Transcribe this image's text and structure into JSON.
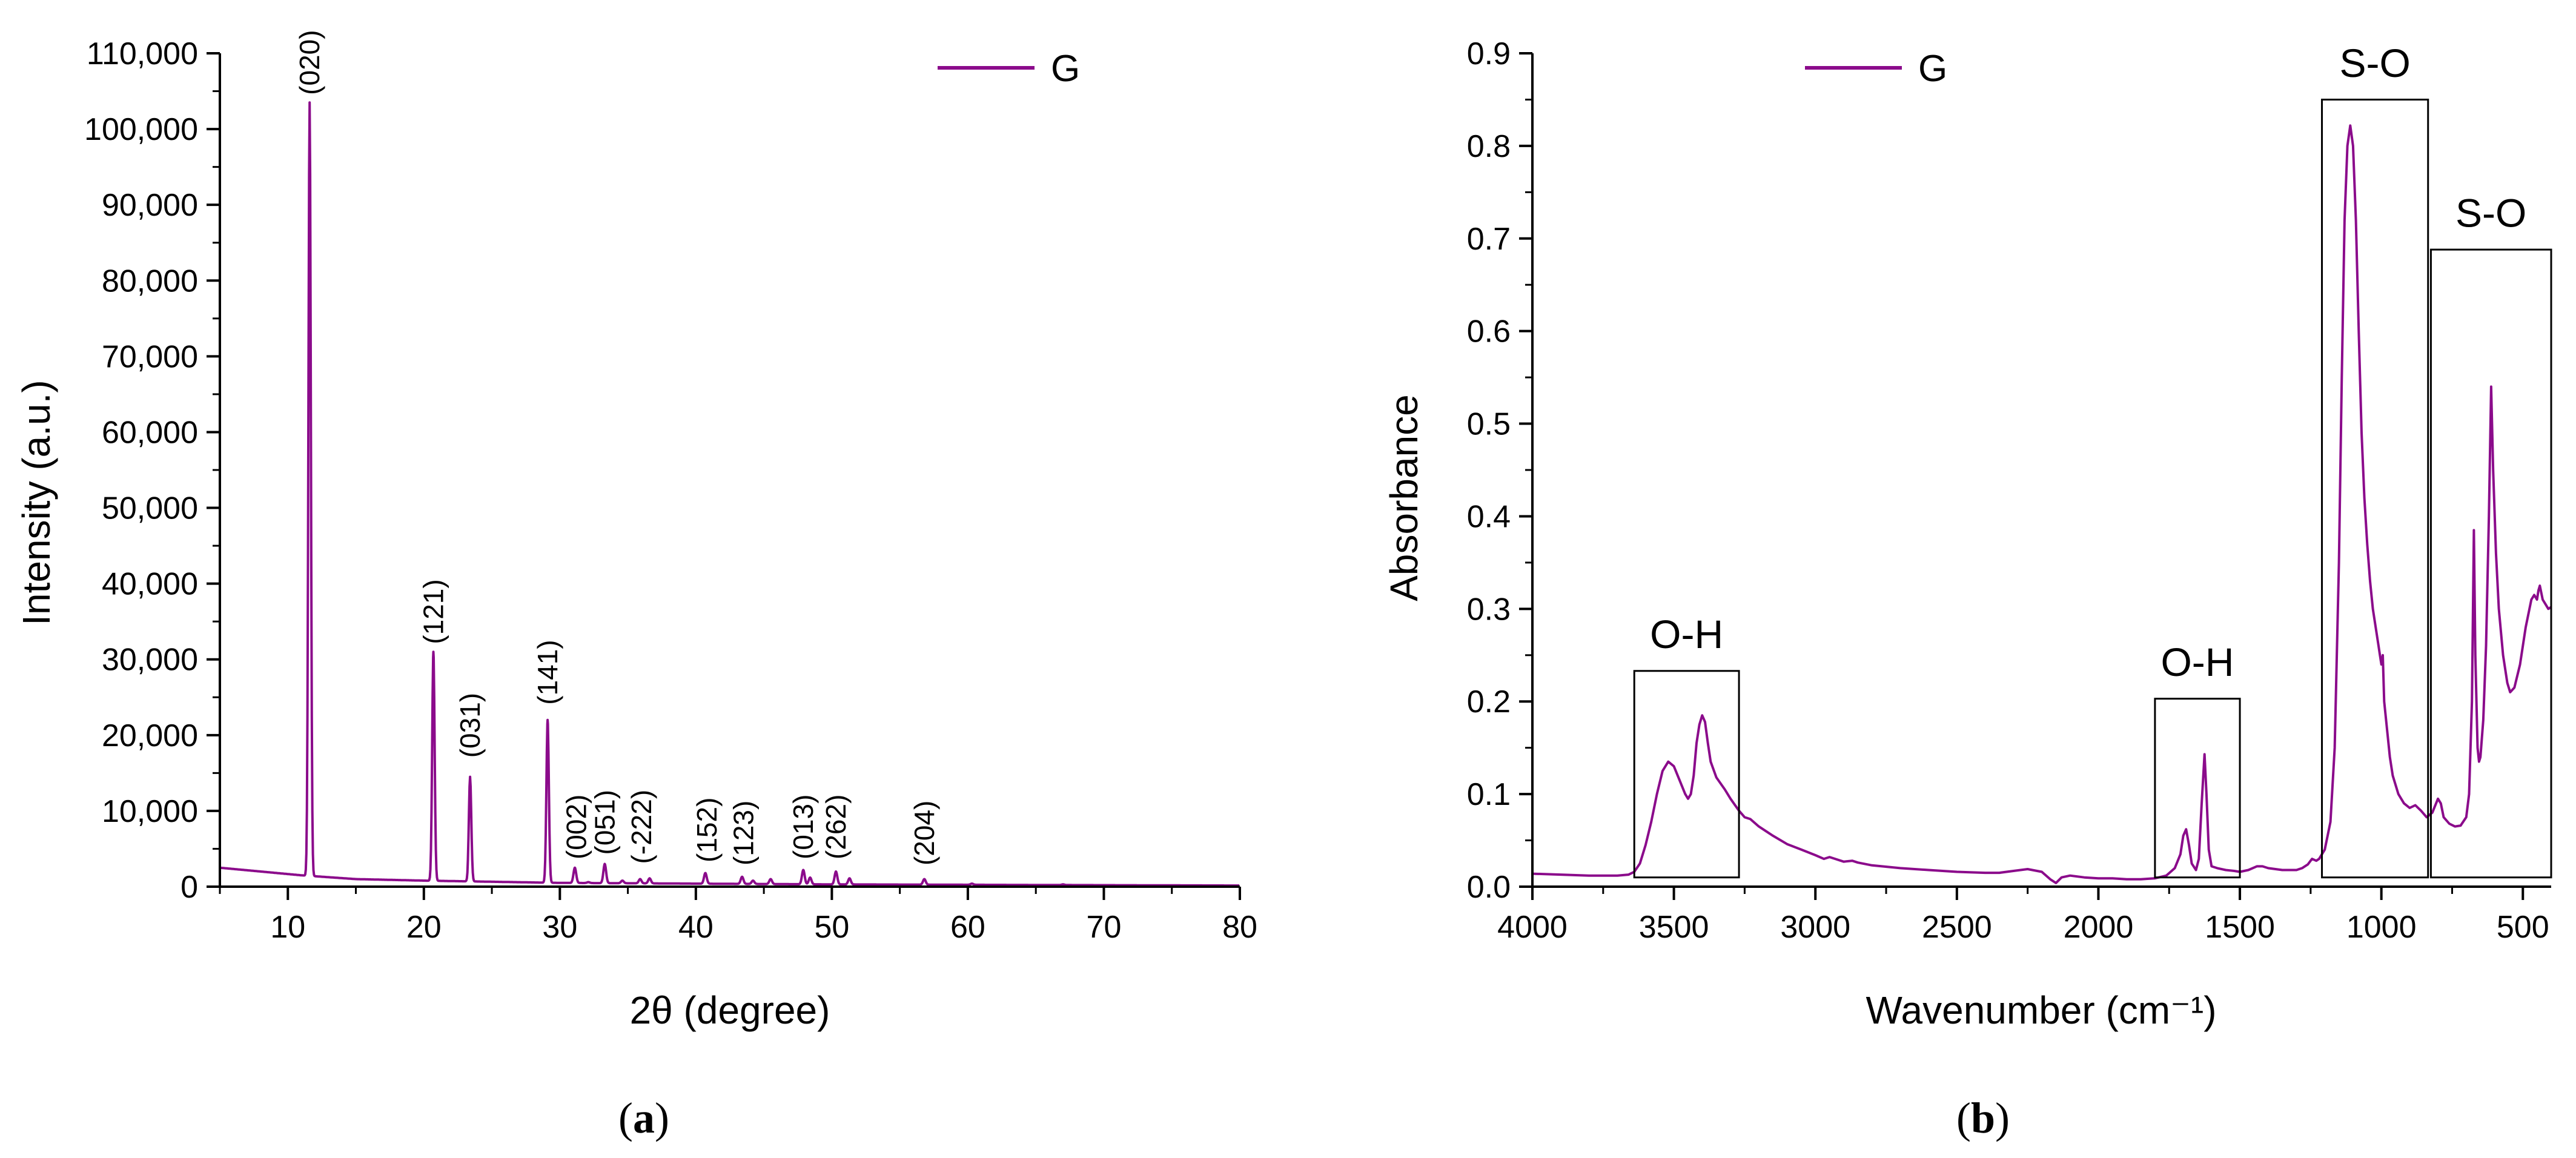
{
  "colors": {
    "series": "#8b0b8b",
    "axis": "#000000"
  },
  "chart_data": [
    {
      "panel": "a",
      "caption": {
        "open": "(",
        "letter": "a",
        "close": ")"
      },
      "type": "line",
      "xlabel": "2θ (degree)",
      "ylabel": "Intensity (a.u.)",
      "xlim": [
        5,
        80
      ],
      "ylim": [
        0,
        110000
      ],
      "xticks": [
        10,
        20,
        30,
        40,
        50,
        60,
        70,
        80
      ],
      "yticks": [
        0,
        10000,
        20000,
        30000,
        40000,
        50000,
        60000,
        70000,
        80000,
        90000,
        100000,
        110000
      ],
      "ytick_labels": [
        "0",
        "10,000",
        "20,000",
        "30,000",
        "40,000",
        "50,000",
        "60,000",
        "70,000",
        "80,000",
        "90,000",
        "100,000",
        "110,000"
      ],
      "legend": {
        "label": "G",
        "position": "top-right"
      },
      "series": [
        {
          "name": "G",
          "baseline": [
            [
              5,
              2500
            ],
            [
              8,
              2000
            ],
            [
              11,
              1500
            ],
            [
              15,
              1000
            ],
            [
              20,
              800
            ],
            [
              25,
              650
            ],
            [
              30,
              500
            ],
            [
              40,
              400
            ],
            [
              50,
              300
            ],
            [
              60,
              250
            ],
            [
              70,
              200
            ],
            [
              80,
              150
            ]
          ],
          "peaks": [
            {
              "x": 11.6,
              "y": 103500,
              "w": 0.09
            },
            {
              "x": 20.7,
              "y": 31000,
              "w": 0.09
            },
            {
              "x": 23.4,
              "y": 14500,
              "w": 0.09
            },
            {
              "x": 29.1,
              "y": 22000,
              "w": 0.09
            },
            {
              "x": 31.1,
              "y": 2500,
              "w": 0.1
            },
            {
              "x": 32.1,
              "y": 600,
              "w": 0.1
            },
            {
              "x": 33.3,
              "y": 3000,
              "w": 0.1
            },
            {
              "x": 34.6,
              "y": 800,
              "w": 0.1
            },
            {
              "x": 35.9,
              "y": 1000,
              "w": 0.1
            },
            {
              "x": 36.6,
              "y": 1100,
              "w": 0.1
            },
            {
              "x": 40.7,
              "y": 1800,
              "w": 0.1
            },
            {
              "x": 43.4,
              "y": 1300,
              "w": 0.1
            },
            {
              "x": 44.2,
              "y": 800,
              "w": 0.1
            },
            {
              "x": 45.5,
              "y": 1000,
              "w": 0.1
            },
            {
              "x": 47.9,
              "y": 2200,
              "w": 0.1
            },
            {
              "x": 48.4,
              "y": 1200,
              "w": 0.1
            },
            {
              "x": 50.3,
              "y": 2000,
              "w": 0.1
            },
            {
              "x": 51.3,
              "y": 1100,
              "w": 0.1
            },
            {
              "x": 56.8,
              "y": 1000,
              "w": 0.1
            },
            {
              "x": 60.3,
              "y": 400,
              "w": 0.1
            },
            {
              "x": 67.0,
              "y": 300,
              "w": 0.1
            }
          ]
        }
      ],
      "annotations": [
        {
          "text": "(020)",
          "x": 11.6,
          "y": 104500
        },
        {
          "text": "(121)",
          "x": 20.7,
          "y": 32000
        },
        {
          "text": "(031)",
          "x": 23.4,
          "y": 17000
        },
        {
          "text": "(141)",
          "x": 29.1,
          "y": 24000
        },
        {
          "text": "(002)",
          "x": 31.2,
          "y": 3600
        },
        {
          "text": "(051)",
          "x": 33.3,
          "y": 4200
        },
        {
          "text": "(-222)",
          "x": 36.0,
          "y": 3000
        },
        {
          "text": "(152)",
          "x": 40.8,
          "y": 3200
        },
        {
          "text": "(123)",
          "x": 43.5,
          "y": 2800
        },
        {
          "text": "(013)",
          "x": 47.9,
          "y": 3600
        },
        {
          "text": "(262)",
          "x": 50.3,
          "y": 3600
        },
        {
          "text": "(204)",
          "x": 56.8,
          "y": 2800
        }
      ]
    },
    {
      "panel": "b",
      "caption": {
        "open": "(",
        "letter": "b",
        "close": ")"
      },
      "type": "line",
      "xlabel": "Wavenumber (cm⁻¹)",
      "ylabel": "Absorbance",
      "xlim": [
        4000,
        400
      ],
      "ylim": [
        0,
        0.9
      ],
      "xticks": [
        4000,
        3500,
        3000,
        2500,
        2000,
        1500,
        1000,
        500
      ],
      "yticks": [
        0,
        0.1,
        0.2,
        0.3,
        0.4,
        0.5,
        0.6,
        0.7,
        0.8,
        0.9
      ],
      "ytick_labels": [
        "0.0",
        "0.1",
        "0.2",
        "0.3",
        "0.4",
        "0.5",
        "0.6",
        "0.7",
        "0.8",
        "0.9"
      ],
      "legend": {
        "label": "G",
        "position": "top-left"
      },
      "series": [
        {
          "name": "G",
          "points": [
            [
              4000,
              0.014
            ],
            [
              3900,
              0.013
            ],
            [
              3800,
              0.012
            ],
            [
              3700,
              0.012
            ],
            [
              3660,
              0.013
            ],
            [
              3640,
              0.016
            ],
            [
              3620,
              0.025
            ],
            [
              3600,
              0.045
            ],
            [
              3580,
              0.07
            ],
            [
              3560,
              0.1
            ],
            [
              3540,
              0.125
            ],
            [
              3520,
              0.135
            ],
            [
              3500,
              0.13
            ],
            [
              3480,
              0.115
            ],
            [
              3460,
              0.1
            ],
            [
              3450,
              0.095
            ],
            [
              3440,
              0.1
            ],
            [
              3430,
              0.12
            ],
            [
              3420,
              0.155
            ],
            [
              3410,
              0.175
            ],
            [
              3400,
              0.185
            ],
            [
              3390,
              0.178
            ],
            [
              3380,
              0.155
            ],
            [
              3370,
              0.135
            ],
            [
              3350,
              0.118
            ],
            [
              3320,
              0.105
            ],
            [
              3300,
              0.095
            ],
            [
              3270,
              0.082
            ],
            [
              3250,
              0.075
            ],
            [
              3230,
              0.073
            ],
            [
              3200,
              0.065
            ],
            [
              3150,
              0.055
            ],
            [
              3100,
              0.046
            ],
            [
              3050,
              0.04
            ],
            [
              3000,
              0.034
            ],
            [
              2970,
              0.03
            ],
            [
              2950,
              0.032
            ],
            [
              2930,
              0.03
            ],
            [
              2900,
              0.027
            ],
            [
              2870,
              0.028
            ],
            [
              2850,
              0.026
            ],
            [
              2800,
              0.023
            ],
            [
              2700,
              0.02
            ],
            [
              2600,
              0.018
            ],
            [
              2500,
              0.016
            ],
            [
              2400,
              0.015
            ],
            [
              2350,
              0.015
            ],
            [
              2300,
              0.017
            ],
            [
              2250,
              0.019
            ],
            [
              2200,
              0.016
            ],
            [
              2170,
              0.008
            ],
            [
              2150,
              0.004
            ],
            [
              2130,
              0.01
            ],
            [
              2100,
              0.012
            ],
            [
              2050,
              0.01
            ],
            [
              2000,
              0.009
            ],
            [
              1950,
              0.009
            ],
            [
              1900,
              0.008
            ],
            [
              1850,
              0.008
            ],
            [
              1800,
              0.009
            ],
            [
              1760,
              0.012
            ],
            [
              1730,
              0.02
            ],
            [
              1710,
              0.035
            ],
            [
              1700,
              0.055
            ],
            [
              1690,
              0.062
            ],
            [
              1680,
              0.045
            ],
            [
              1670,
              0.025
            ],
            [
              1655,
              0.018
            ],
            [
              1645,
              0.03
            ],
            [
              1635,
              0.09
            ],
            [
              1625,
              0.143
            ],
            [
              1618,
              0.1
            ],
            [
              1610,
              0.04
            ],
            [
              1600,
              0.022
            ],
            [
              1580,
              0.02
            ],
            [
              1550,
              0.018
            ],
            [
              1520,
              0.017
            ],
            [
              1500,
              0.016
            ],
            [
              1470,
              0.018
            ],
            [
              1440,
              0.022
            ],
            [
              1420,
              0.022
            ],
            [
              1400,
              0.02
            ],
            [
              1350,
              0.018
            ],
            [
              1300,
              0.018
            ],
            [
              1280,
              0.02
            ],
            [
              1260,
              0.024
            ],
            [
              1245,
              0.03
            ],
            [
              1230,
              0.028
            ],
            [
              1220,
              0.03
            ],
            [
              1200,
              0.04
            ],
            [
              1180,
              0.07
            ],
            [
              1165,
              0.15
            ],
            [
              1150,
              0.35
            ],
            [
              1140,
              0.55
            ],
            [
              1130,
              0.72
            ],
            [
              1120,
              0.8
            ],
            [
              1110,
              0.822
            ],
            [
              1100,
              0.8
            ],
            [
              1090,
              0.72
            ],
            [
              1080,
              0.6
            ],
            [
              1070,
              0.49
            ],
            [
              1060,
              0.42
            ],
            [
              1050,
              0.37
            ],
            [
              1040,
              0.33
            ],
            [
              1030,
              0.3
            ],
            [
              1020,
              0.28
            ],
            [
              1010,
              0.26
            ],
            [
              1005,
              0.25
            ],
            [
              1000,
              0.24
            ],
            [
              995,
              0.25
            ],
            [
              990,
              0.2
            ],
            [
              980,
              0.17
            ],
            [
              970,
              0.14
            ],
            [
              960,
              0.12
            ],
            [
              940,
              0.1
            ],
            [
              920,
              0.09
            ],
            [
              900,
              0.085
            ],
            [
              880,
              0.088
            ],
            [
              860,
              0.082
            ],
            [
              840,
              0.075
            ],
            [
              820,
              0.08
            ],
            [
              800,
              0.095
            ],
            [
              790,
              0.09
            ],
            [
              780,
              0.075
            ],
            [
              760,
              0.068
            ],
            [
              740,
              0.065
            ],
            [
              720,
              0.066
            ],
            [
              700,
              0.075
            ],
            [
              690,
              0.1
            ],
            [
              680,
              0.2
            ],
            [
              673,
              0.385
            ],
            [
              668,
              0.25
            ],
            [
              660,
              0.15
            ],
            [
              655,
              0.135
            ],
            [
              650,
              0.14
            ],
            [
              640,
              0.18
            ],
            [
              630,
              0.26
            ],
            [
              620,
              0.4
            ],
            [
              612,
              0.54
            ],
            [
              605,
              0.45
            ],
            [
              595,
              0.36
            ],
            [
              585,
              0.3
            ],
            [
              570,
              0.25
            ],
            [
              555,
              0.22
            ],
            [
              545,
              0.21
            ],
            [
              530,
              0.215
            ],
            [
              510,
              0.24
            ],
            [
              490,
              0.28
            ],
            [
              470,
              0.31
            ],
            [
              460,
              0.315
            ],
            [
              450,
              0.31
            ],
            [
              445,
              0.32
            ],
            [
              440,
              0.325
            ],
            [
              430,
              0.31
            ],
            [
              420,
              0.305
            ],
            [
              410,
              0.3
            ],
            [
              400,
              0.302
            ]
          ]
        }
      ],
      "annotations": [
        {
          "text": "O-H",
          "box_x": [
            3640,
            3270
          ],
          "box_top": 0.233,
          "label_y": 0.255
        },
        {
          "text": "O-H",
          "box_x": [
            1800,
            1500
          ],
          "box_top": 0.203,
          "label_y": 0.225
        },
        {
          "text": "S-O",
          "box_x": [
            1210,
            835
          ],
          "box_top": 0.85,
          "label_y": 0.872
        },
        {
          "text": "S-O",
          "box_x": [
            825,
            400
          ],
          "box_top": 0.688,
          "label_y": 0.71
        }
      ]
    }
  ]
}
